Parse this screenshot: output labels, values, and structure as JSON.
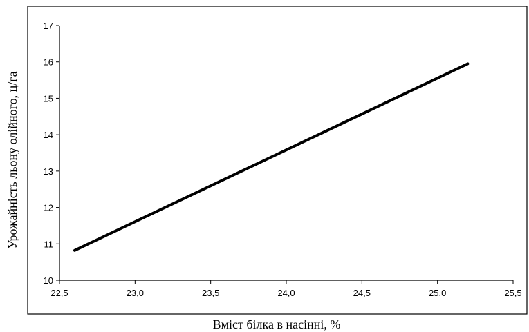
{
  "chart_data": {
    "type": "line",
    "xlabel": "Вміст білка в насінні, %",
    "ylabel": "Урожайність льону олійного, ц/га",
    "xlim": [
      22.5,
      25.5
    ],
    "ylim": [
      10,
      17
    ],
    "x_ticks": [
      "22,5",
      "23,0",
      "23,5",
      "24,0",
      "24,5",
      "25,0",
      "25,5"
    ],
    "y_ticks": [
      "10",
      "11",
      "12",
      "13",
      "14",
      "15",
      "16",
      "17"
    ],
    "grid": false,
    "series": [
      {
        "x": [
          22.6,
          25.2
        ],
        "y": [
          10.82,
          15.95
        ],
        "color": "#000000"
      }
    ]
  }
}
